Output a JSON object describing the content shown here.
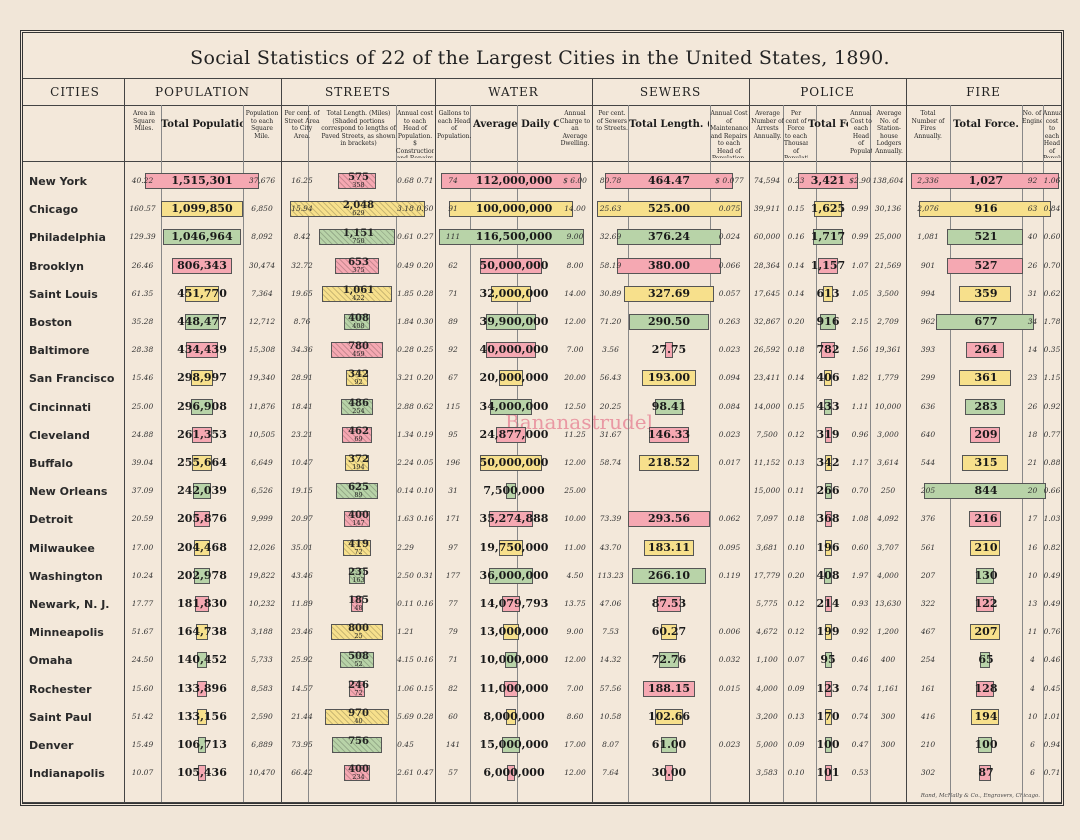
{
  "title": "Social Statistics of 22 of the Largest Cities in the United States, 1890.",
  "watermark": "Bananastrudel",
  "footer": "Rand, McNally & Co., Engravers, Chicago.",
  "sections": {
    "cities": "CITIES",
    "population": "POPULATION",
    "streets": "STREETS",
    "water": "WATER",
    "sewers": "SEWERS",
    "police": "POLICE",
    "fire": "FIRE"
  },
  "subheads": {
    "area": "Area in Square Miles.",
    "total_population": "Total Population.",
    "pop_per_mile": "Population to each Square Mile.",
    "pct_street": "Per cent. of Street Area to City Area.",
    "street_length": "Total Length. (Miles) (Shaded portions correspond to lengths of Paved Streets, as shown in brackets)",
    "street_cost": "Annual cost to each Head of Population. $ Construction and Repairs $ Cleaning",
    "gallons_head": "Gallons to each Head of Population.",
    "avg_consumption": "Average Daily Consumption. (Gallons)",
    "water_charge": "Annual Charge to an Average Dwelling.",
    "pct_sewers": "Per cent. of Sewers to Streets.",
    "sewer_length": "Total Length. (Miles)",
    "sewer_cost": "Annual Cost of Maintenance and Repairs to each Head of Population.",
    "avg_arrests": "Average Number of Arrests Annually.",
    "police_per_thousand": "Per cent of Force to each Thousand of Population.",
    "police_force": "Total Force.",
    "police_cost": "Annual Cost to each Head of Population.",
    "lodgers": "Average No. of Station-house Lodgers Annually.",
    "fires": "Total Number of Fires Annually.",
    "fire_force": "Total Force.",
    "engines": "No. of Engines.",
    "fire_cost": "Annual cost to each Head of Population."
  },
  "cities": [
    {
      "name": "New York",
      "area": "40.22",
      "pop": "1,515,301",
      "pop_sq": "37,676",
      "pct_st": "16.25",
      "st_len": "575",
      "st_paved": "358",
      "st_c": "0.68",
      "st_cl": "0.71",
      "gal": "74",
      "cons": "112,000,000",
      "chg": "$ 6.00",
      "pct_sw": "80.78",
      "sw_len": "464.47",
      "sw_cost": "$ 0.077",
      "arr": "74,594",
      "pct_f": "0.23",
      "force": "3,421",
      "p_cost": "$2.90",
      "lodg": "138,604",
      "fires": "2,336",
      "f_force": "1,027",
      "eng": "92",
      "f_cost": "1.06"
    },
    {
      "name": "Chicago",
      "area": "160.57",
      "pop": "1,099,850",
      "pop_sq": "6,850",
      "pct_st": "15.94",
      "st_len": "2,048",
      "st_paved": "629",
      "st_c": "3.18",
      "st_cl": "0.60",
      "gal": "91",
      "cons": "100,000,000",
      "chg": "14.00",
      "pct_sw": "25.63",
      "sw_len": "525.00",
      "sw_cost": "0.075",
      "arr": "39,911",
      "pct_f": "0.15",
      "force": "1,625",
      "p_cost": "0.99",
      "lodg": "30,136",
      "fires": "2,076",
      "f_force": "916",
      "eng": "63",
      "f_cost": "0.84"
    },
    {
      "name": "Philadelphia",
      "area": "129.39",
      "pop": "1,046,964",
      "pop_sq": "8,092",
      "pct_st": "8.42",
      "st_len": "1,151",
      "st_paved": "750",
      "st_c": "0.61",
      "st_cl": "0.27",
      "gal": "111",
      "cons": "116,500,000",
      "chg": "9.00",
      "pct_sw": "32.69",
      "sw_len": "376.24",
      "sw_cost": "0.024",
      "arr": "60,000",
      "pct_f": "0.16",
      "force": "1,717",
      "p_cost": "0.99",
      "lodg": "25,000",
      "fires": "1,081",
      "f_force": "521",
      "eng": "40",
      "f_cost": "0.60"
    },
    {
      "name": "Brooklyn",
      "area": "26.46",
      "pop": "806,343",
      "pop_sq": "30,474",
      "pct_st": "32.72",
      "st_len": "653",
      "st_paved": "375",
      "st_c": "0.49",
      "st_cl": "0.20",
      "gal": "62",
      "cons": "50,000,000",
      "chg": "8.00",
      "pct_sw": "58.19",
      "sw_len": "380.00",
      "sw_cost": "0.066",
      "arr": "28,364",
      "pct_f": "0.14",
      "force": "1,157",
      "p_cost": "1.07",
      "lodg": "21,569",
      "fires": "901",
      "f_force": "527",
      "eng": "26",
      "f_cost": "0.70"
    },
    {
      "name": "Saint Louis",
      "area": "61.35",
      "pop": "451,770",
      "pop_sq": "7,364",
      "pct_st": "19.65",
      "st_len": "1,061",
      "st_paved": "422",
      "st_c": "1.85",
      "st_cl": "0.28",
      "gal": "71",
      "cons": "32,000,000",
      "chg": "14.00",
      "pct_sw": "30.89",
      "sw_len": "327.69",
      "sw_cost": "0.057",
      "arr": "17,645",
      "pct_f": "0.14",
      "force": "613",
      "p_cost": "1.05",
      "lodg": "3,500",
      "fires": "994",
      "f_force": "359",
      "eng": "31",
      "f_cost": "0.62"
    },
    {
      "name": "Boston",
      "area": "35.28",
      "pop": "448,477",
      "pop_sq": "12,712",
      "pct_st": "8.76",
      "st_len": "408",
      "st_paved": "408",
      "st_c": "1.84",
      "st_cl": "0.30",
      "gal": "89",
      "cons": "39,900,000",
      "chg": "12.00",
      "pct_sw": "71.20",
      "sw_len": "290.50",
      "sw_cost": "0.263",
      "arr": "32,867",
      "pct_f": "0.20",
      "force": "916",
      "p_cost": "2.15",
      "lodg": "2,709",
      "fires": "962",
      "f_force": "677",
      "eng": "34",
      "f_cost": "1.78"
    },
    {
      "name": "Baltimore",
      "area": "28.38",
      "pop": "434,439",
      "pop_sq": "15,308",
      "pct_st": "34.36",
      "st_len": "780",
      "st_paved": "459",
      "st_c": "0.28",
      "st_cl": "0.25",
      "gal": "92",
      "cons": "40,000,000",
      "chg": "7.00",
      "pct_sw": "3.56",
      "sw_len": "27.75",
      "sw_cost": "0.023",
      "arr": "26,592",
      "pct_f": "0.18",
      "force": "782",
      "p_cost": "1.56",
      "lodg": "19,361",
      "fires": "393",
      "f_force": "264",
      "eng": "14",
      "f_cost": "0.35"
    },
    {
      "name": "San Francisco",
      "area": "15.46",
      "pop": "298,997",
      "pop_sq": "19,340",
      "pct_st": "28.91",
      "st_len": "342",
      "st_paved": "92",
      "st_c": "3.21",
      "st_cl": "0.20",
      "gal": "67",
      "cons": "20,000,000",
      "chg": "20.00",
      "pct_sw": "56.43",
      "sw_len": "193.00",
      "sw_cost": "0.094",
      "arr": "23,411",
      "pct_f": "0.14",
      "force": "406",
      "p_cost": "1.82",
      "lodg": "1,779",
      "fires": "299",
      "f_force": "361",
      "eng": "23",
      "f_cost": "1.15"
    },
    {
      "name": "Cincinnati",
      "area": "25.00",
      "pop": "296,908",
      "pop_sq": "11,876",
      "pct_st": "18.41",
      "st_len": "486",
      "st_paved": "254",
      "st_c": "2.88",
      "st_cl": "0.62",
      "gal": "115",
      "cons": "34,000,000",
      "chg": "12.50",
      "pct_sw": "20.25",
      "sw_len": "98.41",
      "sw_cost": "0.084",
      "arr": "14,000",
      "pct_f": "0.15",
      "force": "433",
      "p_cost": "1.11",
      "lodg": "10,000",
      "fires": "636",
      "f_force": "283",
      "eng": "26",
      "f_cost": "0.92"
    },
    {
      "name": "Cleveland",
      "area": "24.88",
      "pop": "261,353",
      "pop_sq": "10,505",
      "pct_st": "23.21",
      "st_len": "462",
      "st_paved": "69",
      "st_c": "1.34",
      "st_cl": "0.19",
      "gal": "95",
      "cons": "24,877,000",
      "chg": "11.25",
      "pct_sw": "31.67",
      "sw_len": "146.33",
      "sw_cost": "0.023",
      "arr": "7,500",
      "pct_f": "0.12",
      "force": "319",
      "p_cost": "0.96",
      "lodg": "3,000",
      "fires": "640",
      "f_force": "209",
      "eng": "18",
      "f_cost": "0.77"
    },
    {
      "name": "Buffalo",
      "area": "39.04",
      "pop": "255,664",
      "pop_sq": "6,649",
      "pct_st": "10.47",
      "st_len": "372",
      "st_paved": "194",
      "st_c": "2.24",
      "st_cl": "0.05",
      "gal": "196",
      "cons": "50,000,000",
      "chg": "12.00",
      "pct_sw": "58.74",
      "sw_len": "218.52",
      "sw_cost": "0.017",
      "arr": "11,152",
      "pct_f": "0.13",
      "force": "342",
      "p_cost": "1.17",
      "lodg": "3,614",
      "fires": "544",
      "f_force": "315",
      "eng": "21",
      "f_cost": "0.88"
    },
    {
      "name": "New Orleans",
      "area": "37.09",
      "pop": "242,039",
      "pop_sq": "6,526",
      "pct_st": "19.15",
      "st_len": "625",
      "st_paved": "89",
      "st_c": "0.14",
      "st_cl": "0.10",
      "gal": "31",
      "cons": "7,500,000",
      "chg": "25.00",
      "pct_sw": "",
      "sw_len": "",
      "sw_cost": "",
      "arr": "15,000",
      "pct_f": "0.11",
      "force": "266",
      "p_cost": "0.70",
      "lodg": "250",
      "fires": "205",
      "f_force": "844",
      "eng": "20",
      "f_cost": "0.66"
    },
    {
      "name": "Detroit",
      "area": "20.59",
      "pop": "205,876",
      "pop_sq": "9,999",
      "pct_st": "20.97",
      "st_len": "400",
      "st_paved": "147",
      "st_c": "1.63",
      "st_cl": "0.16",
      "gal": "171",
      "cons": "35,274,888",
      "chg": "10.00",
      "pct_sw": "73.39",
      "sw_len": "293.56",
      "sw_cost": "0.062",
      "arr": "7,097",
      "pct_f": "0.18",
      "force": "368",
      "p_cost": "1.08",
      "lodg": "4,092",
      "fires": "376",
      "f_force": "216",
      "eng": "17",
      "f_cost": "1.03"
    },
    {
      "name": "Milwaukee",
      "area": "17.00",
      "pop": "204,468",
      "pop_sq": "12,026",
      "pct_st": "35.01",
      "st_len": "419",
      "st_paved": "72",
      "st_c": "2.29",
      "st_cl": "",
      "gal": "97",
      "cons": "19,750,000",
      "chg": "11.00",
      "pct_sw": "43.70",
      "sw_len": "183.11",
      "sw_cost": "0.095",
      "arr": "3,681",
      "pct_f": "0.10",
      "force": "196",
      "p_cost": "0.60",
      "lodg": "3,707",
      "fires": "561",
      "f_force": "210",
      "eng": "16",
      "f_cost": "0.82"
    },
    {
      "name": "Washington",
      "area": "10.24",
      "pop": "202,978",
      "pop_sq": "19,822",
      "pct_st": "43.46",
      "st_len": "235",
      "st_paved": "163",
      "st_c": "2.50",
      "st_cl": "0.31",
      "gal": "177",
      "cons": "36,000,000",
      "chg": "4.50",
      "pct_sw": "113.23",
      "sw_len": "266.10",
      "sw_cost": "0.119",
      "arr": "17,779",
      "pct_f": "0.20",
      "force": "408",
      "p_cost": "1.97",
      "lodg": "4,000",
      "fires": "207",
      "f_force": "130",
      "eng": "10",
      "f_cost": "0.49"
    },
    {
      "name": "Newark, N. J.",
      "area": "17.77",
      "pop": "181,830",
      "pop_sq": "10,232",
      "pct_st": "11.89",
      "st_len": "185",
      "st_paved": "48",
      "st_c": "0.11",
      "st_cl": "0.16",
      "gal": "77",
      "cons": "14,079,793",
      "chg": "13.75",
      "pct_sw": "47.06",
      "sw_len": "87.53",
      "sw_cost": "",
      "arr": "5,775",
      "pct_f": "0.12",
      "force": "214",
      "p_cost": "0.93",
      "lodg": "13,630",
      "fires": "322",
      "f_force": "122",
      "eng": "13",
      "f_cost": "0.49"
    },
    {
      "name": "Minneapolis",
      "area": "51.67",
      "pop": "164,738",
      "pop_sq": "3,188",
      "pct_st": "23.46",
      "st_len": "800",
      "st_paved": "25",
      "st_c": "1.21",
      "st_cl": "",
      "gal": "79",
      "cons": "13,000,000",
      "chg": "9.00",
      "pct_sw": "7.53",
      "sw_len": "60.27",
      "sw_cost": "0.006",
      "arr": "4,672",
      "pct_f": "0.12",
      "force": "199",
      "p_cost": "0.92",
      "lodg": "1,200",
      "fires": "467",
      "f_force": "207",
      "eng": "11",
      "f_cost": "0.76"
    },
    {
      "name": "Omaha",
      "area": "24.50",
      "pop": "140,452",
      "pop_sq": "5,733",
      "pct_st": "25.92",
      "st_len": "508",
      "st_paved": "52",
      "st_c": "4.15",
      "st_cl": "0.16",
      "gal": "71",
      "cons": "10,000,000",
      "chg": "12.00",
      "pct_sw": "14.32",
      "sw_len": "72.76",
      "sw_cost": "0.032",
      "arr": "1,100",
      "pct_f": "0.07",
      "force": "95",
      "p_cost": "0.46",
      "lodg": "400",
      "fires": "254",
      "f_force": "65",
      "eng": "4",
      "f_cost": "0.46"
    },
    {
      "name": "Rochester",
      "area": "15.60",
      "pop": "133,896",
      "pop_sq": "8,583",
      "pct_st": "14.57",
      "st_len": "246",
      "st_paved": "72",
      "st_c": "1.06",
      "st_cl": "0.15",
      "gal": "82",
      "cons": "11,000,000",
      "chg": "7.00",
      "pct_sw": "57.56",
      "sw_len": "188.15",
      "sw_cost": "0.015",
      "arr": "4,000",
      "pct_f": "0.09",
      "force": "123",
      "p_cost": "0.74",
      "lodg": "1,161",
      "fires": "161",
      "f_force": "128",
      "eng": "4",
      "f_cost": "0.45"
    },
    {
      "name": "Saint Paul",
      "area": "51.42",
      "pop": "133,156",
      "pop_sq": "2,590",
      "pct_st": "21.44",
      "st_len": "970",
      "st_paved": "40",
      "st_c": "5.69",
      "st_cl": "0.28",
      "gal": "60",
      "cons": "8,000,000",
      "chg": "8.60",
      "pct_sw": "10.58",
      "sw_len": "102.66",
      "sw_cost": "",
      "arr": "3,200",
      "pct_f": "0.13",
      "force": "170",
      "p_cost": "0.74",
      "lodg": "300",
      "fires": "416",
      "f_force": "194",
      "eng": "10",
      "f_cost": "1.01"
    },
    {
      "name": "Denver",
      "area": "15.49",
      "pop": "106,713",
      "pop_sq": "6,889",
      "pct_st": "73.95",
      "st_len": "756",
      "st_paved": "",
      "st_c": "0.45",
      "st_cl": "",
      "gal": "141",
      "cons": "15,000,000",
      "chg": "17.00",
      "pct_sw": "8.07",
      "sw_len": "61.00",
      "sw_cost": "0.023",
      "arr": "5,000",
      "pct_f": "0.09",
      "force": "100",
      "p_cost": "0.47",
      "lodg": "300",
      "fires": "210",
      "f_force": "100",
      "eng": "6",
      "f_cost": "0.94"
    },
    {
      "name": "Indianapolis",
      "area": "10.07",
      "pop": "105,436",
      "pop_sq": "10,470",
      "pct_st": "66.42",
      "st_len": "400",
      "st_paved": "234",
      "st_c": "2.61",
      "st_cl": "0.47",
      "gal": "57",
      "cons": "6,000,000",
      "chg": "12.00",
      "pct_sw": "7.64",
      "sw_len": "30.00",
      "sw_cost": "",
      "arr": "3,583",
      "pct_f": "0.10",
      "force": "101",
      "p_cost": "0.53",
      "lodg": "",
      "fires": "302",
      "f_force": "87",
      "eng": "6",
      "f_cost": "0.71"
    }
  ],
  "bar_values": {
    "pop": [
      1515301,
      1099850,
      1046964,
      806343,
      451770,
      448477,
      434439,
      298997,
      296908,
      261353,
      255664,
      242039,
      205876,
      204468,
      202978,
      181830,
      164738,
      140452,
      133896,
      133156,
      106713,
      105436
    ],
    "st_len": [
      575,
      2048,
      1151,
      653,
      1061,
      408,
      780,
      342,
      486,
      462,
      372,
      625,
      400,
      419,
      235,
      185,
      800,
      508,
      246,
      970,
      756,
      400
    ],
    "cons": [
      112000000,
      100000000,
      116500000,
      50000000,
      32000000,
      39900000,
      40000000,
      20000000,
      34000000,
      24877000,
      50000000,
      7500000,
      35274888,
      19750000,
      36000000,
      14079793,
      13000000,
      10000000,
      11000000,
      8000000,
      15000000,
      6000000
    ],
    "sw_len": [
      464.47,
      525,
      376.24,
      380,
      327.69,
      290.5,
      27.75,
      193,
      98.41,
      146.33,
      218.52,
      0,
      293.56,
      183.11,
      266.1,
      87.53,
      60.27,
      72.76,
      188.15,
      102.66,
      61,
      30
    ],
    "force": [
      3421,
      1625,
      1717,
      1157,
      613,
      916,
      782,
      406,
      433,
      319,
      342,
      266,
      368,
      196,
      408,
      214,
      199,
      95,
      123,
      170,
      100,
      101
    ],
    "f_force": [
      1027,
      916,
      521,
      527,
      359,
      677,
      264,
      361,
      283,
      209,
      315,
      844,
      216,
      210,
      130,
      122,
      207,
      65,
      128,
      194,
      100,
      87
    ]
  },
  "bar_colors": [
    "pink",
    "yellow",
    "green",
    "pink",
    "yellow",
    "green",
    "pink",
    "yellow",
    "green",
    "pink",
    "yellow",
    "green",
    "pink",
    "yellow",
    "green",
    "pink",
    "yellow",
    "green",
    "pink",
    "yellow",
    "green",
    "pink"
  ],
  "colors": {
    "pink": "#f5a8b2",
    "yellow": "#f7e08c",
    "green": "#b8d3a8"
  }
}
